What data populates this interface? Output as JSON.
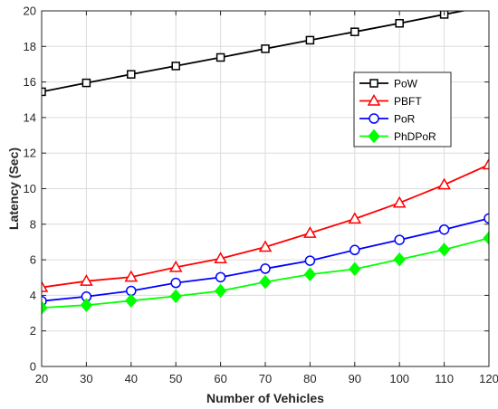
{
  "chart_data": {
    "type": "line",
    "title": "",
    "xlabel": "Number of Vehicles",
    "ylabel": "Latency (Sec)",
    "x": [
      20,
      30,
      40,
      50,
      60,
      70,
      80,
      90,
      100,
      110,
      120
    ],
    "xlim": [
      20,
      120
    ],
    "ylim": [
      0,
      20
    ],
    "xticks": [
      "20",
      "30",
      "40",
      "50",
      "60",
      "70",
      "80",
      "90",
      "100",
      "110",
      "120"
    ],
    "yticks": [
      "0",
      "2",
      "4",
      "6",
      "8",
      "10",
      "12",
      "14",
      "16",
      "18",
      "20"
    ],
    "grid": true,
    "legend_position": "right",
    "series": [
      {
        "name": "PoW",
        "color": "#000000",
        "marker": "square",
        "values": [
          15.45,
          15.95,
          16.43,
          16.9,
          17.38,
          17.87,
          18.35,
          18.82,
          19.3,
          19.8,
          20.28
        ]
      },
      {
        "name": "PBFT",
        "color": "#ff0000",
        "marker": "triangle",
        "values": [
          4.45,
          4.8,
          5.03,
          5.58,
          6.07,
          6.72,
          7.5,
          8.3,
          9.2,
          10.22,
          11.35
        ]
      },
      {
        "name": "PoR",
        "color": "#0000ff",
        "marker": "circle",
        "values": [
          3.68,
          3.93,
          4.25,
          4.7,
          5.02,
          5.5,
          5.95,
          6.55,
          7.12,
          7.7,
          8.33
        ]
      },
      {
        "name": "PhDPoR",
        "color": "#00ff00",
        "marker": "diamond",
        "values": [
          3.3,
          3.45,
          3.7,
          3.95,
          4.25,
          4.75,
          5.18,
          5.48,
          6.02,
          6.57,
          7.22
        ]
      }
    ]
  }
}
